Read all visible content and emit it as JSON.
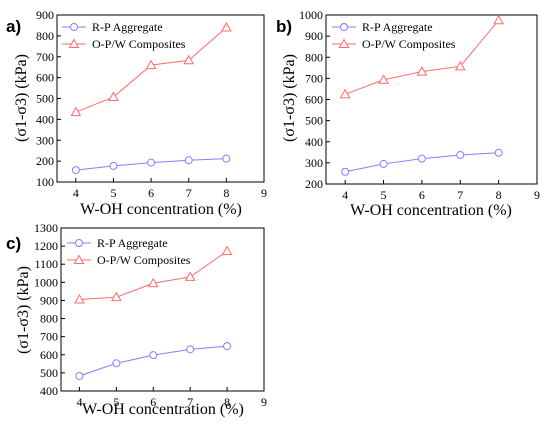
{
  "colors": {
    "rp": "#8080ff",
    "op": "#ff6b6b",
    "axis": "#000000"
  },
  "chart_data": [
    {
      "panel": "a)",
      "type": "line",
      "xlabel": "W-OH concentration (%)",
      "ylabel": "(σ1-σ3) (kPa)",
      "xlim": [
        3.5,
        9
      ],
      "xticks": [
        4,
        5,
        6,
        7,
        8,
        9
      ],
      "ylim": [
        100,
        900
      ],
      "yticks": [
        100,
        200,
        300,
        400,
        500,
        600,
        700,
        800,
        900
      ],
      "x": [
        4,
        5,
        6,
        7,
        8
      ],
      "legend_position": "top-left",
      "series": [
        {
          "name": "R-P Aggregate",
          "marker": "circle",
          "values": [
            157,
            177,
            193,
            204,
            212
          ]
        },
        {
          "name": "O-P/W Composites",
          "marker": "triangle",
          "values": [
            435,
            507,
            660,
            683,
            840
          ]
        }
      ]
    },
    {
      "panel": "b)",
      "type": "line",
      "xlabel": "W-OH concentration (%)",
      "ylabel": "(σ1-σ3) (kPa)",
      "xlim": [
        3.5,
        9
      ],
      "xticks": [
        4,
        5,
        6,
        7,
        8,
        9
      ],
      "ylim": [
        200,
        1000
      ],
      "yticks": [
        200,
        300,
        400,
        500,
        600,
        700,
        800,
        900,
        1000
      ],
      "x": [
        4,
        5,
        6,
        7,
        8
      ],
      "legend_position": "top-left",
      "series": [
        {
          "name": "R-P Aggregate",
          "marker": "circle",
          "values": [
            258,
            295,
            320,
            337,
            348
          ]
        },
        {
          "name": "O-P/W Composites",
          "marker": "triangle",
          "values": [
            625,
            693,
            732,
            757,
            975
          ]
        }
      ]
    },
    {
      "panel": "c)",
      "type": "line",
      "xlabel": "W-OH concentration (%)",
      "ylabel": "(σ1-σ3) (kPa)",
      "xlim": [
        3.5,
        9
      ],
      "xticks": [
        4,
        5,
        6,
        7,
        8,
        9
      ],
      "ylim": [
        400,
        1300
      ],
      "yticks": [
        400,
        500,
        600,
        700,
        800,
        900,
        1000,
        1100,
        1200,
        1300
      ],
      "x": [
        4,
        5,
        6,
        7,
        8
      ],
      "legend_position": "top-left",
      "series": [
        {
          "name": "R-P Aggregate",
          "marker": "circle",
          "values": [
            483,
            553,
            598,
            630,
            648
          ]
        },
        {
          "name": "O-P/W Composites",
          "marker": "triangle",
          "values": [
            905,
            918,
            995,
            1030,
            1172
          ]
        }
      ]
    }
  ]
}
